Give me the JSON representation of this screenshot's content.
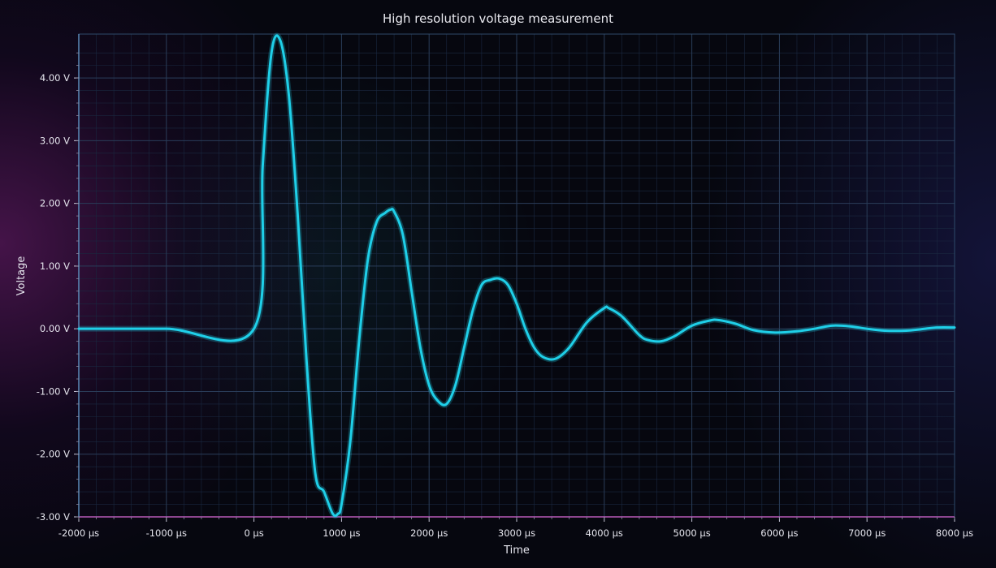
{
  "chart_data": {
    "type": "line",
    "title": "High resolution voltage measurement",
    "xlabel": "Time",
    "ylabel": "Voltage",
    "xlim": [
      -2000,
      8000
    ],
    "ylim": [
      -3.0,
      4.7
    ],
    "x_ticks": [
      -2000,
      -1000,
      0,
      1000,
      2000,
      3000,
      4000,
      5000,
      6000,
      7000,
      8000
    ],
    "x_tick_labels": [
      "-2000 µs",
      "-1000 µs",
      "0 µs",
      "1000 µs",
      "2000 µs",
      "3000 µs",
      "4000 µs",
      "5000 µs",
      "6000 µs",
      "7000 µs",
      "8000 µs"
    ],
    "y_ticks": [
      4,
      3,
      2,
      1,
      0,
      -1,
      -2,
      -3
    ],
    "y_tick_labels": [
      "4.00 V",
      "3.00 V",
      "2.00 V",
      "1.00 V",
      "0.00 V",
      "-1.00 V",
      "-2.00 V",
      "-3.00 V"
    ],
    "grid": true,
    "legend": "none",
    "line_color": "#1fcfe8",
    "series": [
      {
        "x": [
          -2000,
          -1000,
          0,
          100,
          200,
          300,
          400,
          500,
          600,
          700,
          800,
          900,
          960,
          1000,
          1100,
          1200,
          1300,
          1400,
          1500,
          1560,
          1600,
          1700,
          1800,
          1900,
          2000,
          2100,
          2200,
          2300,
          2400,
          2500,
          2600,
          2700,
          2800,
          2900,
          3000,
          3100,
          3200,
          3300,
          3440,
          3600,
          3800,
          4000,
          4050,
          4200,
          4400,
          4500,
          4650,
          4800,
          5000,
          5200,
          5300,
          5500,
          5700,
          5950,
          6200,
          6400,
          6600,
          6800,
          7000,
          7200,
          7450,
          7600,
          7800,
          8000
        ],
        "y": [
          0.0,
          0.0,
          0.0,
          2.6,
          4.4,
          4.6,
          3.7,
          1.8,
          -0.5,
          -2.3,
          -2.6,
          -2.95,
          -2.95,
          -2.8,
          -1.8,
          -0.2,
          1.1,
          1.7,
          1.85,
          1.9,
          1.87,
          1.5,
          0.6,
          -0.3,
          -0.9,
          -1.15,
          -1.2,
          -0.9,
          -0.3,
          0.3,
          0.7,
          0.78,
          0.8,
          0.7,
          0.4,
          0.0,
          -0.3,
          -0.45,
          -0.48,
          -0.3,
          0.1,
          0.33,
          0.33,
          0.2,
          -0.1,
          -0.18,
          -0.2,
          -0.12,
          0.05,
          0.13,
          0.14,
          0.08,
          -0.02,
          -0.06,
          -0.04,
          0.0,
          0.05,
          0.04,
          0.0,
          -0.03,
          -0.03,
          -0.01,
          0.02,
          0.02
        ]
      }
    ]
  }
}
